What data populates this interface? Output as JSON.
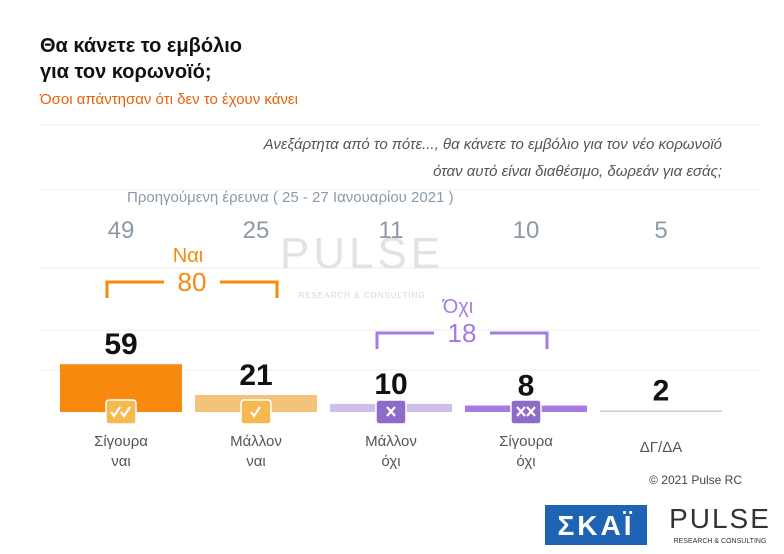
{
  "chart_data": {
    "type": "bar",
    "title": [
      "Θα κάνετε το εμβόλιο",
      "για τον κορωνοϊό;"
    ],
    "subtitle": "Όσοι απάντησαν ότι δεν το έχουν κάνει",
    "question": [
      "Ανεξάρτητα από το πότε..., θα κάνετε το εμβόλιο για τον νέο κορωνοϊό",
      "όταν αυτό είναι διαθέσιμο, δωρεάν για εσάς;"
    ],
    "previous_label": "Προηγούμενη έρευνα  ( 25 - 27  Ιανουαρίου  2021 )",
    "categories": [
      [
        "Σίγουρα",
        "ναι"
      ],
      [
        "Μάλλον",
        "ναι"
      ],
      [
        "Μάλλον",
        "όχι"
      ],
      [
        "Σίγουρα",
        "όχι"
      ],
      [
        "ΔΓ/ΔΑ"
      ]
    ],
    "values": [
      59,
      21,
      10,
      8,
      2
    ],
    "colors": [
      "#f7890f",
      "#f5c27a",
      "#cdbfe8",
      "#a57be3",
      "#d0d0d0"
    ],
    "previous_values": [
      49,
      25,
      11,
      10,
      5
    ],
    "groups": [
      {
        "name": "Ναι",
        "value": 80,
        "color": "#f7890f"
      },
      {
        "name": "Όχι",
        "value": 18,
        "color": "#a57be3"
      }
    ],
    "copyright": "© 2021 Pulse RC",
    "watermark": [
      "PULSE",
      "RESEARCH & CONSULTING"
    ],
    "logos": [
      "ΣΚΑΪ",
      "PULSE",
      "RESEARCH & CONSULTING"
    ]
  }
}
